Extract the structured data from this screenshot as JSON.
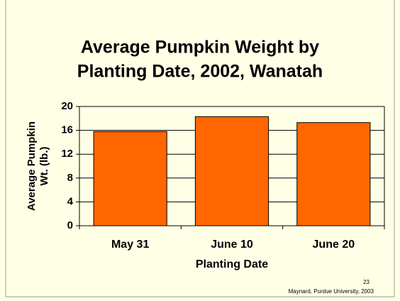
{
  "chart_data": {
    "type": "bar",
    "title": [
      "Average Pumpkin Weight by",
      "Planting Date, 2002, Wanatah"
    ],
    "y_label": [
      "Average Pumpkin",
      "Wt. (lb.)"
    ],
    "x_label": "Planting Date",
    "categories": [
      "May 31",
      "June 10",
      "June 20"
    ],
    "values": [
      15.8,
      18.3,
      17.3
    ],
    "color": "#ff6600",
    "ylim": [
      0,
      20
    ],
    "yticks": [
      0,
      4,
      8,
      12,
      16,
      20
    ],
    "grid": true,
    "annotations": [
      "23",
      "Maynard, Purdue University, 2003"
    ]
  }
}
